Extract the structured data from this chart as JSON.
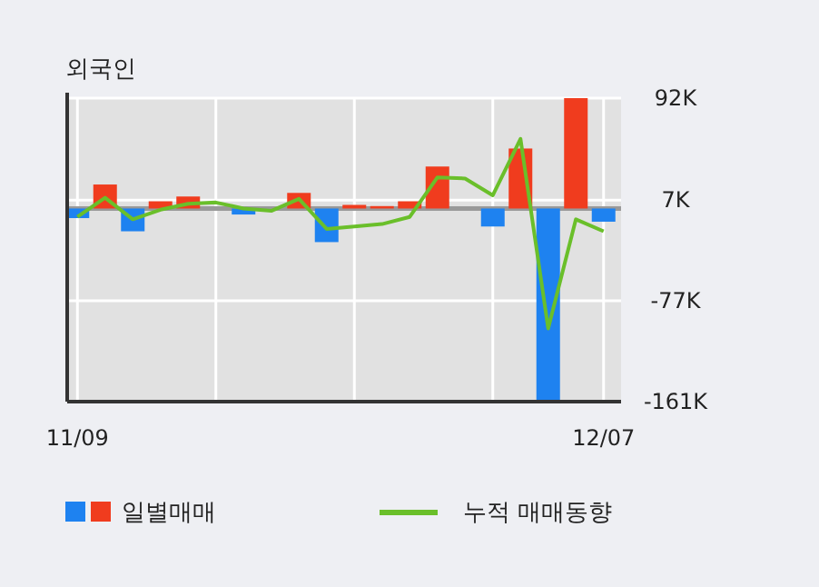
{
  "chart_data": {
    "type": "bar",
    "title": "외국인",
    "categories": [
      "11/09",
      null,
      null,
      null,
      null,
      null,
      null,
      null,
      null,
      null,
      null,
      null,
      null,
      null,
      null,
      null,
      null,
      null,
      null,
      "12/07"
    ],
    "series": [
      {
        "name": "일별매매",
        "colors": [
          "#1e82f0",
          "#f03c1e",
          "#1e82f0",
          "#f03c1e",
          "#f03c1e",
          "#f03c1e",
          "#1e82f0",
          "#f03c1e",
          "#f03c1e",
          "#1e82f0",
          "#f03c1e",
          "#f03c1e",
          "#f03c1e",
          "#f03c1e",
          "#f03c1e",
          "#1e82f0",
          "#f03c1e",
          "#1e82f0",
          "#f03c1e",
          "#1e82f0"
        ],
        "values": [
          -8,
          20,
          -19,
          6,
          10,
          0,
          -5,
          0,
          13,
          -28,
          3,
          2,
          6,
          35,
          0,
          -15,
          50,
          -161,
          92,
          -11
        ]
      },
      {
        "name": "누적 매매동향",
        "type": "line",
        "color": "#6abf2a",
        "values": [
          -7,
          9,
          -9,
          -1,
          4,
          5,
          0,
          -2,
          8,
          -17,
          -15,
          -13,
          -7,
          26,
          25,
          11,
          58,
          -100,
          -9,
          -19
        ]
      }
    ],
    "ylim": [
      -161,
      92
    ],
    "yticks": [
      {
        "value": -161,
        "label": "-161K"
      },
      {
        "value": -77,
        "label": "-77K"
      },
      {
        "value": 7,
        "label": "7K"
      },
      {
        "value": 92,
        "label": "92K"
      }
    ],
    "ref_lines": [
      {
        "axis": "y",
        "value": 0,
        "color": "#999999"
      }
    ],
    "grid": true,
    "legend": "bottom"
  }
}
